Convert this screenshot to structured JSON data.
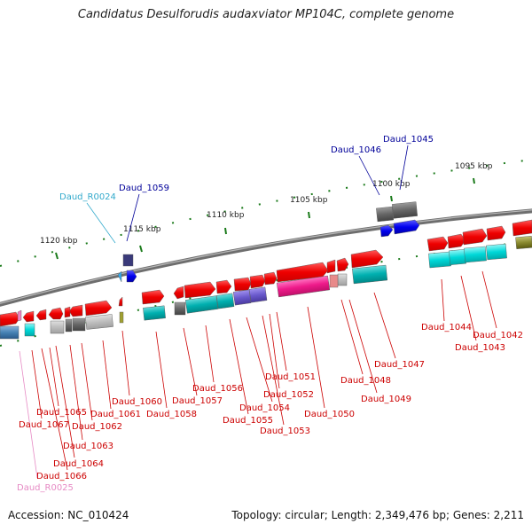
{
  "title": "Candidatus Desulforudis audaxviator MP104C, complete genome",
  "footer": {
    "accession": "Accession: NC_010424",
    "summary": "Topology: circular; Length: 2,349,476 bp; Genes: 2,211"
  },
  "colors": {
    "backbone": "#7a7a7a",
    "tick": "#1a7a1a",
    "tick_label": "#222222",
    "label_red": "#cc0000",
    "label_blue": "#000099",
    "label_cyan": "#33aacc",
    "label_pink": "#e68ac4"
  },
  "scale_labels": [
    "1095 kbp",
    "1100 kbp",
    "1105 kbp",
    "1110 kbp",
    "1115 kbp",
    "1120 kbp"
  ],
  "gene_labels": [
    {
      "text": "Daud_1045",
      "color": "blue"
    },
    {
      "text": "Daud_1046",
      "color": "blue"
    },
    {
      "text": "Daud_1059",
      "color": "blue"
    },
    {
      "text": "Daud_R0024",
      "color": "cyan"
    },
    {
      "text": "Daud_1044",
      "color": "red"
    },
    {
      "text": "Daud_1042",
      "color": "red"
    },
    {
      "text": "Daud_1043",
      "color": "red"
    },
    {
      "text": "Daud_1047",
      "color": "red"
    },
    {
      "text": "Daud_1048",
      "color": "red"
    },
    {
      "text": "Daud_1049",
      "color": "red"
    },
    {
      "text": "Daud_1050",
      "color": "red"
    },
    {
      "text": "Daud_1051",
      "color": "red"
    },
    {
      "text": "Daud_1052",
      "color": "red"
    },
    {
      "text": "Daud_1053",
      "color": "red"
    },
    {
      "text": "Daud_1054",
      "color": "red"
    },
    {
      "text": "Daud_1055",
      "color": "red"
    },
    {
      "text": "Daud_1056",
      "color": "red"
    },
    {
      "text": "Daud_1057",
      "color": "red"
    },
    {
      "text": "Daud_1058",
      "color": "red"
    },
    {
      "text": "Daud_1060",
      "color": "red"
    },
    {
      "text": "Daud_1061",
      "color": "red"
    },
    {
      "text": "Daud_1062",
      "color": "red"
    },
    {
      "text": "Daud_1063",
      "color": "red"
    },
    {
      "text": "Daud_1064",
      "color": "red"
    },
    {
      "text": "Daud_1065",
      "color": "red"
    },
    {
      "text": "Daud_1066",
      "color": "red"
    },
    {
      "text": "Daud_1067",
      "color": "red"
    },
    {
      "text": "Daud_R0025",
      "color": "pink"
    }
  ]
}
